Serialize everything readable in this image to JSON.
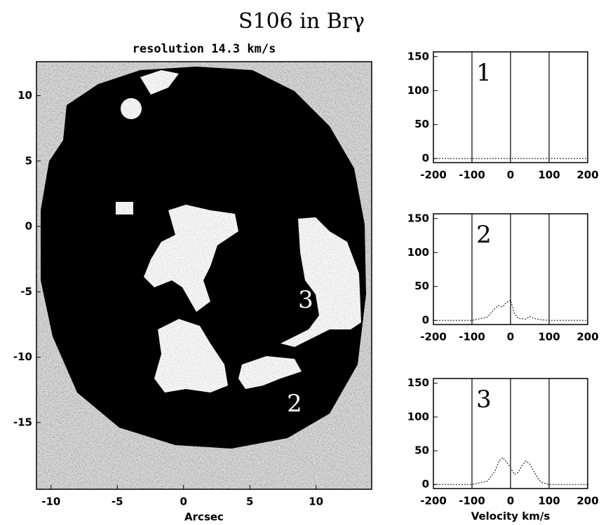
{
  "title": "S106 in Brγ",
  "chart_data": [
    {
      "type": "image",
      "subtitle": "resolution 14.3 km/s",
      "x_label": "Arcsec",
      "xlim": [
        -11.1,
        14.2
      ],
      "xticks": [
        -10,
        -5,
        0,
        5,
        10
      ],
      "ylim": [
        -20.1,
        12.6
      ],
      "yticks": [
        10,
        5,
        0,
        -5,
        -10,
        -15
      ],
      "annotations": [
        "3",
        "2"
      ]
    },
    {
      "type": "line",
      "label": "1",
      "color": "#000000",
      "x": [
        -200,
        -150,
        -100,
        -50,
        0,
        50,
        100,
        150,
        200
      ],
      "values": [
        0,
        0,
        0,
        0,
        0,
        0,
        0,
        0,
        0
      ],
      "xlim": [
        -200,
        200
      ],
      "xticks": [
        -200,
        -100,
        0,
        100,
        200
      ],
      "ylim": [
        -6,
        157
      ],
      "yticks": [
        0,
        50,
        100,
        150
      ],
      "vlines": [
        -100,
        0,
        100
      ]
    },
    {
      "type": "line",
      "label": "2",
      "color": "#000000",
      "x": [
        -200,
        -150,
        -100,
        -60,
        -40,
        -30,
        -20,
        -10,
        0,
        10,
        20,
        40,
        50,
        60,
        80,
        100,
        150,
        200
      ],
      "values": [
        0,
        0,
        0,
        5,
        18,
        22,
        20,
        27,
        30,
        10,
        3,
        2,
        6,
        3,
        1,
        0,
        0,
        0
      ],
      "xlim": [
        -200,
        200
      ],
      "xticks": [
        -200,
        -100,
        0,
        100,
        200
      ],
      "ylim": [
        -6,
        157
      ],
      "yticks": [
        0,
        50,
        100,
        150
      ],
      "vlines": [
        -100,
        0,
        100
      ]
    },
    {
      "type": "line",
      "label": "3",
      "color": "#000000",
      "x_label": "Velocity km/s",
      "x": [
        -200,
        -150,
        -100,
        -60,
        -40,
        -30,
        -20,
        -10,
        0,
        10,
        20,
        30,
        40,
        50,
        60,
        70,
        80,
        100,
        150,
        200
      ],
      "values": [
        0,
        0,
        0,
        5,
        20,
        35,
        40,
        33,
        25,
        15,
        18,
        28,
        35,
        30,
        20,
        10,
        3,
        0,
        0,
        0
      ],
      "xlim": [
        -200,
        200
      ],
      "xticks": [
        -200,
        -100,
        0,
        100,
        200
      ],
      "ylim": [
        -6,
        157
      ],
      "yticks": [
        0,
        50,
        100,
        150
      ],
      "vlines": [
        -100,
        0,
        100
      ]
    }
  ]
}
